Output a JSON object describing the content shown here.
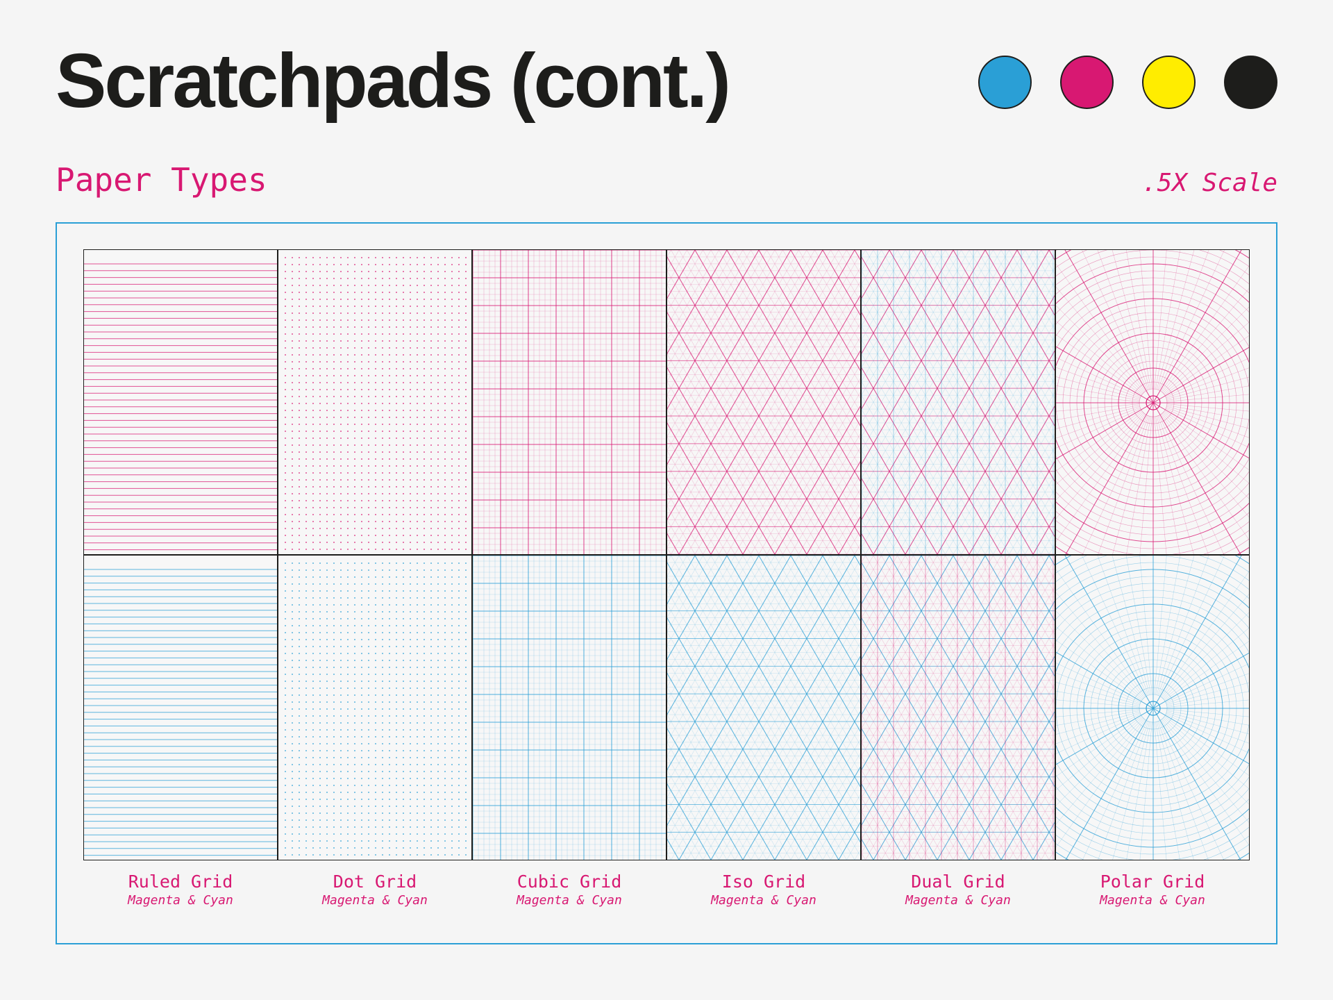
{
  "header": {
    "title": "Scratchpads (cont.)",
    "subtitle": "Paper Types",
    "scale": ".5X Scale"
  },
  "swatches": [
    {
      "name": "cyan",
      "color": "#2a9fd6"
    },
    {
      "name": "magenta",
      "color": "#d81872"
    },
    {
      "name": "yellow",
      "color": "#ffed00"
    },
    {
      "name": "black",
      "color": "#1d1d1b"
    }
  ],
  "colors": {
    "accent": "#d81872",
    "frame": "#2a9fd6",
    "magenta": "#d81872",
    "cyan": "#2a9fd6",
    "ink": "#1d1d1b"
  },
  "papers": [
    {
      "type": "ruled",
      "name": "Ruled Grid",
      "colors": "Magenta & Cyan"
    },
    {
      "type": "dot",
      "name": "Dot Grid",
      "colors": "Magenta & Cyan"
    },
    {
      "type": "cubic",
      "name": "Cubic Grid",
      "colors": "Magenta & Cyan"
    },
    {
      "type": "iso",
      "name": "Iso Grid",
      "colors": "Magenta & Cyan"
    },
    {
      "type": "dual",
      "name": "Dual Grid",
      "colors": "Magenta & Cyan"
    },
    {
      "type": "polar",
      "name": "Polar Grid",
      "colors": "Magenta & Cyan"
    }
  ]
}
